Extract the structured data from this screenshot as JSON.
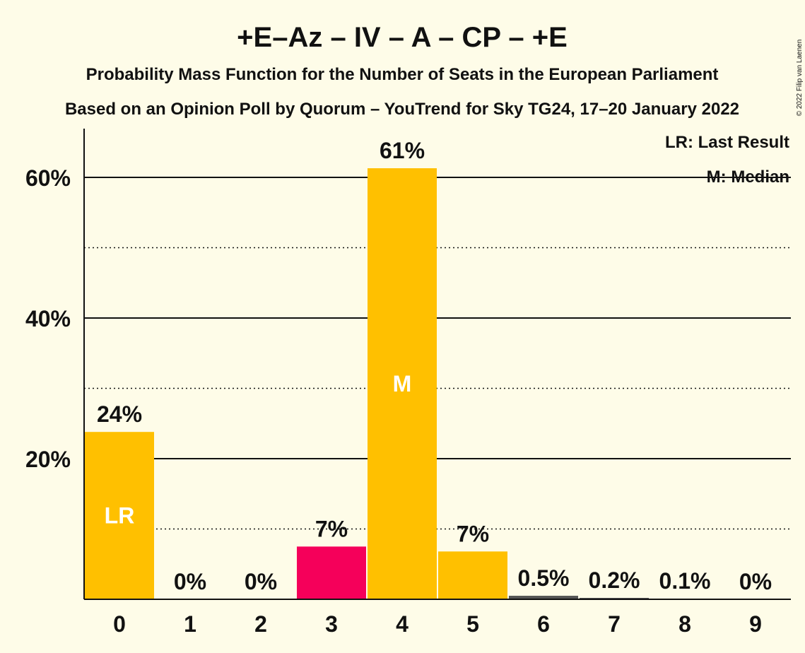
{
  "chart_data": {
    "type": "bar",
    "title": "+E–Az – IV – A – CP – +E",
    "subtitle": "Probability Mass Function for the Number of Seats in the European Parliament",
    "subtitle2": "Based on an Opinion Poll by Quorum – YouTrend for Sky TG24, 17–20 January 2022",
    "categories": [
      "0",
      "1",
      "2",
      "3",
      "4",
      "5",
      "6",
      "7",
      "8",
      "9"
    ],
    "values": [
      23.8,
      0,
      0,
      7.5,
      61.3,
      6.8,
      0.5,
      0.2,
      0.1,
      0
    ],
    "labels": [
      "24%",
      "0%",
      "0%",
      "7%",
      "61%",
      "7%",
      "0.5%",
      "0.2%",
      "0.1%",
      "0%"
    ],
    "bar_colors": [
      "#ffc000",
      "#ffc000",
      "#ffc000",
      "#f5005a",
      "#ffc000",
      "#ffc000",
      "#555555",
      "#555555",
      "#555555",
      "#555555"
    ],
    "inner_marks": [
      {
        "category": "0",
        "text": "LR"
      },
      {
        "category": "4",
        "text": "M"
      }
    ],
    "yticks": [
      {
        "value": 20,
        "label": "20%"
      },
      {
        "value": 40,
        "label": "40%"
      },
      {
        "value": 60,
        "label": "60%"
      }
    ],
    "minor_gridlines": [
      10,
      30,
      50
    ],
    "ylim": [
      0,
      67
    ],
    "legend": [
      "LR: Last Result",
      "M: Median"
    ],
    "legend_position": "top-right",
    "copyright": "© 2022 Filip van Laenen",
    "colors": {
      "background": "#fefce8",
      "text": "#111111",
      "inner_text": "#ffffff"
    }
  }
}
